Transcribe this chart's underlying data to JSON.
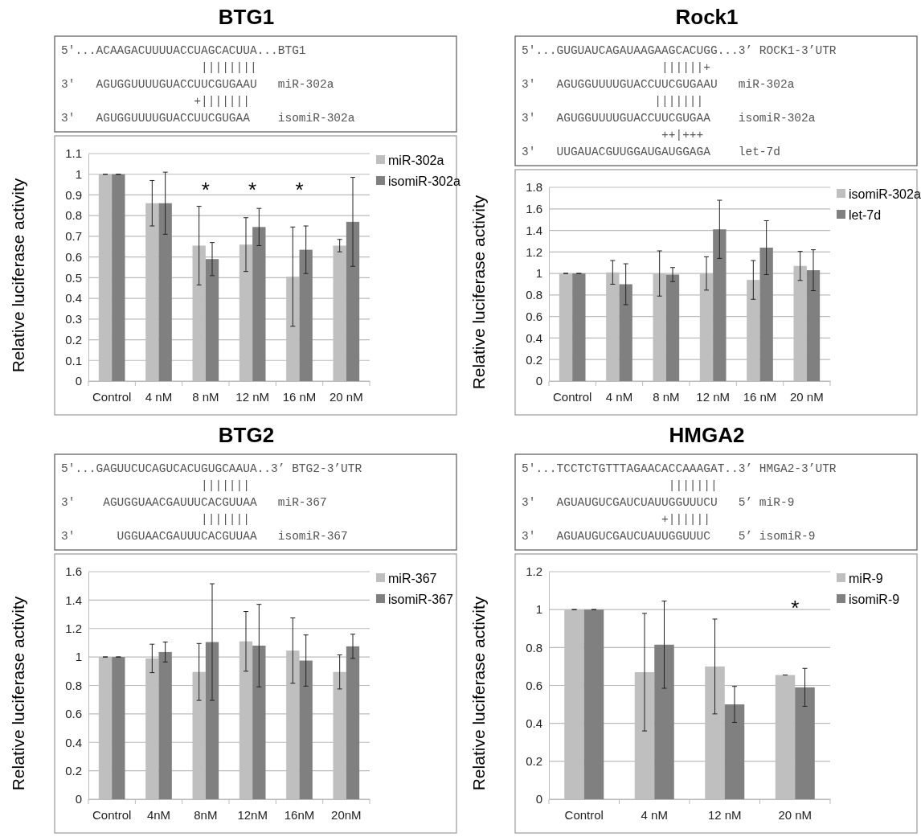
{
  "chart_data": [
    {
      "type": "bar",
      "title": "BTG1",
      "ylabel": "Relative luciferase activity",
      "categories": [
        "Control",
        "4 nM",
        "8 nM",
        "12 nM",
        "16 nM",
        "20 nM"
      ],
      "series": [
        {
          "name": "miR-302a",
          "color": "#bfbfbf",
          "values": [
            1,
            0.86,
            0.655,
            0.66,
            0.505,
            0.655
          ],
          "errors": [
            0,
            0.11,
            0.19,
            0.13,
            0.24,
            0.03
          ]
        },
        {
          "name": "isomiR-302a",
          "color": "#808080",
          "values": [
            1,
            0.86,
            0.59,
            0.745,
            0.635,
            0.77
          ],
          "errors": [
            0,
            0.15,
            0.08,
            0.09,
            0.115,
            0.215
          ]
        }
      ],
      "ylim": [
        0,
        1.1
      ],
      "yticks": [
        0,
        0.1,
        0.2,
        0.3,
        0.4,
        0.5,
        0.6,
        0.7,
        0.8,
        0.9,
        1,
        1.1
      ],
      "grid": "y",
      "legend": "top right",
      "annotations": [
        "5'...ACAAGACUUUUACCUAGCACUUA...BTG1",
        "                    ||||||||",
        "3'   AGUGGUUUUGUACCUUCGUGAAU   miR-302a",
        "                   +|||||||",
        "3'   AGUGGUUUUGUACCUUCGUGAA    isomiR-302a",
        "*",
        "*",
        "*"
      ]
    },
    {
      "type": "bar",
      "title": "Rock1",
      "ylabel": "Relative luciferase activity",
      "categories": [
        "Control",
        "4 nM",
        "8 nM",
        "12 nM",
        "16 nM",
        "20 nM"
      ],
      "series": [
        {
          "name": "isomiR-302a",
          "color": "#bfbfbf",
          "values": [
            1,
            1.01,
            1.0,
            1.0,
            0.94,
            1.07
          ],
          "errors": [
            0,
            0.11,
            0.21,
            0.155,
            0.18,
            0.135
          ]
        },
        {
          "name": "let-7d",
          "color": "#808080",
          "values": [
            1,
            0.9,
            0.99,
            1.41,
            1.24,
            1.03
          ],
          "errors": [
            0,
            0.19,
            0.065,
            0.27,
            0.25,
            0.19
          ]
        }
      ],
      "ylim": [
        0,
        1.8
      ],
      "yticks": [
        0,
        0.2,
        0.4,
        0.6,
        0.8,
        1,
        1.2,
        1.4,
        1.6,
        1.8
      ],
      "grid": "y",
      "legend": "top right",
      "annotations": [
        "5'...GUGUAUCAGAUAAGAAGCACUGG...3’ ROCK1-3’UTR",
        "                    ||||||+",
        "3'   AGUGGUUUUGUACCUUCGUGAAU   miR-302a",
        "                   |||||||",
        "3'   AGUGGUUUUGUACCUUCGUGAA    isomiR-302a",
        "                    ++|+++",
        "3'   UUGAUACGUUGGAUGAUGGAGA    let-7d"
      ]
    },
    {
      "type": "bar",
      "title": "BTG2",
      "ylabel": "Relative luciferase activity",
      "categories": [
        "Control",
        "4nM",
        "8nM",
        "12nM",
        "16nM",
        "20nM"
      ],
      "series": [
        {
          "name": "miR-367",
          "color": "#bfbfbf",
          "values": [
            1,
            0.99,
            0.895,
            1.11,
            1.045,
            0.895
          ],
          "errors": [
            0,
            0.1,
            0.2,
            0.21,
            0.23,
            0.12
          ]
        },
        {
          "name": "isomiR-367",
          "color": "#808080",
          "values": [
            1,
            1.035,
            1.105,
            1.08,
            0.975,
            1.075
          ],
          "errors": [
            0,
            0.07,
            0.41,
            0.29,
            0.18,
            0.085
          ]
        }
      ],
      "ylim": [
        0,
        1.6
      ],
      "yticks": [
        0,
        0.2,
        0.4,
        0.6,
        0.8,
        1,
        1.2,
        1.4,
        1.6
      ],
      "grid": "y",
      "legend": "top right",
      "annotations": [
        "5'...GAGUUCUCAGUCACUGUGCAAUA..3’ BTG2-3’UTR",
        "                    |||||||",
        "3'    AGUGGUAACGAUUUCACGUUAA   miR-367",
        "                    |||||||",
        "3'      UGGUAACGAUUUCACGUUAA   isomiR-367"
      ]
    },
    {
      "type": "bar",
      "title": "HMGA2",
      "ylabel": "Relative luciferase activity",
      "categories": [
        "Control",
        "4 nM",
        "12 nM",
        "20 nM"
      ],
      "series": [
        {
          "name": "miR-9",
          "color": "#bfbfbf",
          "values": [
            1,
            0.67,
            0.7,
            0.655
          ],
          "errors": [
            0,
            0.31,
            0.25,
            0
          ]
        },
        {
          "name": "isomiR-9",
          "color": "#808080",
          "values": [
            1,
            0.815,
            0.5,
            0.59
          ],
          "errors": [
            0,
            0.23,
            0.095,
            0.1
          ]
        }
      ],
      "ylim": [
        0,
        1.2
      ],
      "yticks": [
        0,
        0.2,
        0.4,
        0.6,
        0.8,
        1,
        1.2
      ],
      "grid": "y",
      "legend": "top right",
      "annotations": [
        "5'...TCCTCTGTTTAGAACACCAAAGAT..3’ HMGA2-3’UTR",
        "                     |||||||",
        "3'   AGUAUGUCGAUCUAUUGGUUUCU   5’ miR-9",
        "                    +||||||",
        "3'   AGUAUGUCGAUCUAUUGGUUUC    5’ isomiR-9",
        "*"
      ]
    }
  ]
}
